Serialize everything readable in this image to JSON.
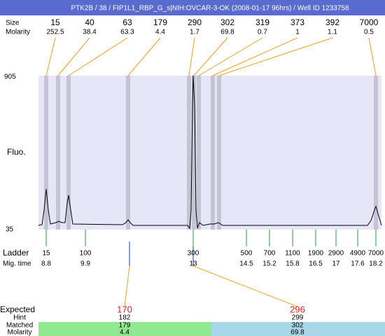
{
  "header": {
    "title": "PTK2B / 38 / FIP1L1_RBP_G_s|NIH:OVCAR-3-OK (2008-01-17 96hrs) / Well ID 1233758"
  },
  "peaks": {
    "size_label": "Size",
    "molarity_label": "Molarity",
    "sizes": [
      15,
      40,
      63,
      179,
      290,
      302,
      319,
      373,
      392,
      7000
    ],
    "molarity": [
      252.5,
      38.4,
      63.3,
      4.4,
      1.7,
      69.8,
      0.7,
      1,
      1.1,
      0.5
    ]
  },
  "plot": {
    "y_max": 905,
    "y_min": 35,
    "y_label": "Fluo."
  },
  "ladder": {
    "label": "Ladder",
    "time_label": "Mig. time",
    "sizes": [
      15,
      100,
      300,
      500,
      700,
      1100,
      1900,
      2900,
      4900,
      7000
    ],
    "times": [
      8.8,
      9.9,
      13,
      14.5,
      15.2,
      15.8,
      16.5,
      17,
      17.6,
      18.2
    ]
  },
  "expected": {
    "label": "Expected",
    "hint_label": "Hint",
    "matched_label": "Matched",
    "molarity_label": "Molarity",
    "targets": [
      {
        "expected": 170,
        "hint": 182,
        "matched": 179,
        "molarity": 4.4
      },
      {
        "expected": 296,
        "hint": 299,
        "matched": 302,
        "molarity": 69.8
      }
    ]
  }
}
